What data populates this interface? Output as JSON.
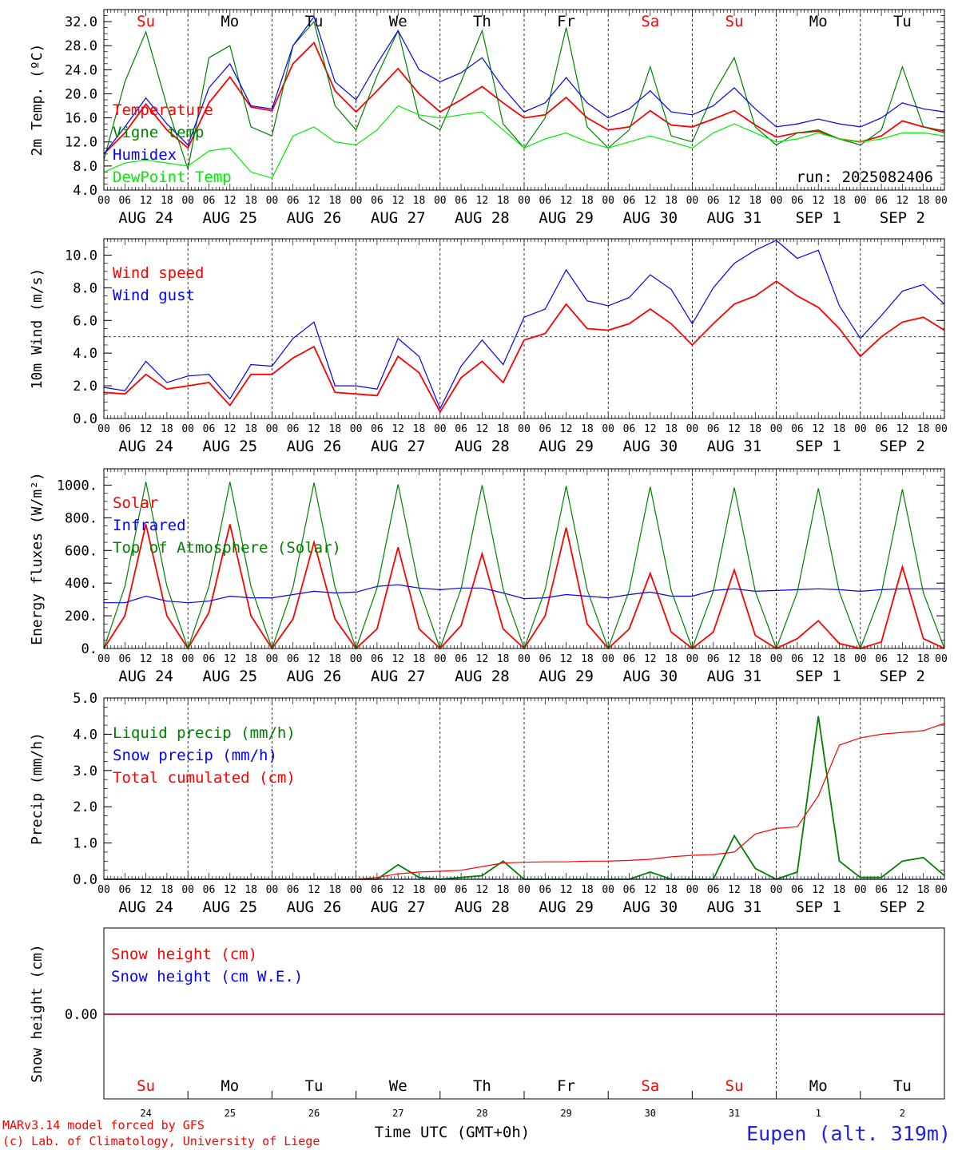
{
  "chart_data": [
    {
      "type": "line",
      "ylabel": "2m Temp. (ºC)",
      "ylim": [
        4,
        34
      ],
      "yticks": [
        "4.0",
        "8.0",
        "12.0",
        "16.0",
        "20.0",
        "24.0",
        "28.0",
        "32.0"
      ],
      "run_label": "run: 2025082406",
      "day_names": [
        "Su",
        "Mo",
        "Tu",
        "We",
        "Th",
        "Fr",
        "Sa",
        "Su",
        "Mo",
        "Tu"
      ],
      "x_hours": [
        0,
        6,
        12,
        18,
        24,
        30,
        36,
        42,
        48,
        54,
        60,
        66,
        72,
        78,
        84,
        90,
        96,
        102,
        108,
        114,
        120,
        126,
        132,
        138,
        144,
        150,
        156,
        162,
        168,
        174,
        180,
        186,
        192,
        198,
        204,
        210,
        216,
        222,
        228,
        234,
        240
      ],
      "series": [
        {
          "name": "Temperature",
          "color": "#ff0000",
          "values": [
            10.0,
            13.5,
            18.3,
            14.0,
            11.0,
            18.5,
            22.8,
            17.8,
            17.2,
            25.0,
            28.5,
            20.5,
            17.0,
            20.5,
            24.2,
            20.0,
            17.0,
            19.0,
            21.2,
            18.5,
            16.0,
            16.5,
            19.4,
            16.0,
            14.0,
            14.5,
            17.2,
            14.8,
            14.5,
            15.8,
            17.2,
            14.8,
            12.8,
            13.5,
            13.8,
            12.5,
            12.0,
            13.0,
            15.5,
            14.5,
            13.8
          ]
        },
        {
          "name": "Vigne temp",
          "color": "#008000",
          "values": [
            9.0,
            22.0,
            30.3,
            18.0,
            7.5,
            26.0,
            28.0,
            14.5,
            13.0,
            28.0,
            32.0,
            18.0,
            14.0,
            23.0,
            30.5,
            16.0,
            14.0,
            22.0,
            30.5,
            15.0,
            11.0,
            16.0,
            31.0,
            14.5,
            11.0,
            14.0,
            24.5,
            13.0,
            12.0,
            20.0,
            26.0,
            14.5,
            11.5,
            13.5,
            14.0,
            12.5,
            11.5,
            14.0,
            24.5,
            14.5,
            13.5
          ]
        },
        {
          "name": "Humidex",
          "color": "#0000ff",
          "values": [
            10.0,
            14.5,
            19.3,
            15.0,
            11.5,
            21.0,
            25.0,
            18.0,
            17.5,
            28.0,
            32.8,
            22.0,
            19.0,
            25.0,
            30.5,
            24.0,
            22.0,
            23.5,
            26.0,
            21.0,
            17.0,
            18.5,
            22.7,
            18.5,
            16.0,
            17.5,
            20.5,
            17.0,
            16.5,
            18.0,
            21.0,
            17.5,
            14.5,
            15.0,
            15.8,
            15.0,
            14.5,
            16.0,
            18.5,
            17.5,
            17.0
          ]
        },
        {
          "name": "DewPoint Temp",
          "color": "#00ee00",
          "values": [
            7.0,
            8.5,
            9.0,
            8.5,
            8.0,
            10.5,
            11.0,
            7.0,
            6.0,
            13.0,
            14.5,
            12.0,
            11.5,
            14.0,
            18.0,
            16.5,
            16.0,
            16.5,
            17.0,
            14.0,
            11.0,
            12.5,
            13.5,
            12.0,
            11.0,
            12.0,
            13.0,
            12.0,
            11.0,
            13.5,
            15.0,
            13.5,
            12.0,
            12.5,
            13.5,
            12.5,
            12.0,
            12.5,
            13.5,
            13.5,
            13.0
          ]
        }
      ]
    },
    {
      "type": "line",
      "ylabel": "10m Wind (m/s)",
      "ylim": [
        0,
        11
      ],
      "yticks": [
        "0.0",
        "2.0",
        "4.0",
        "6.0",
        "8.0",
        "10.0"
      ],
      "reference_line": 5.0,
      "x_hours": [
        0,
        6,
        12,
        18,
        24,
        30,
        36,
        42,
        48,
        54,
        60,
        66,
        72,
        78,
        84,
        90,
        96,
        102,
        108,
        114,
        120,
        126,
        132,
        138,
        144,
        150,
        156,
        162,
        168,
        174,
        180,
        186,
        192,
        198,
        204,
        210,
        216,
        222,
        228,
        234,
        240
      ],
      "series": [
        {
          "name": "Wind speed",
          "color": "#ff0000",
          "values": [
            1.6,
            1.5,
            2.7,
            1.8,
            2.0,
            2.2,
            0.8,
            2.7,
            2.7,
            3.7,
            4.4,
            1.6,
            1.5,
            1.4,
            3.8,
            2.8,
            0.4,
            2.5,
            3.5,
            2.2,
            4.8,
            5.2,
            7.0,
            5.5,
            5.4,
            5.8,
            6.7,
            5.8,
            4.5,
            5.8,
            7.0,
            7.5,
            8.4,
            7.5,
            6.8,
            5.5,
            3.8,
            5.0,
            5.9,
            6.2,
            5.4
          ]
        },
        {
          "name": "Wind gust",
          "color": "#0000ff",
          "values": [
            1.9,
            1.7,
            3.5,
            2.2,
            2.6,
            2.7,
            1.2,
            3.3,
            3.2,
            4.9,
            5.9,
            2.0,
            2.0,
            1.8,
            4.9,
            3.8,
            0.6,
            3.2,
            4.8,
            3.3,
            6.2,
            6.7,
            9.1,
            7.2,
            6.9,
            7.4,
            8.8,
            7.9,
            5.8,
            8.0,
            9.5,
            10.3,
            10.9,
            9.8,
            10.3,
            6.9,
            4.9,
            6.3,
            7.8,
            8.2,
            7.0
          ]
        }
      ]
    },
    {
      "type": "line",
      "ylabel": "Energy fluxes (W/m²)",
      "ylim": [
        0,
        1100
      ],
      "yticks": [
        "0.",
        "200.",
        "400.",
        "600.",
        "800.",
        "1000."
      ],
      "x_hours": [
        0,
        6,
        12,
        18,
        24,
        30,
        36,
        42,
        48,
        54,
        60,
        66,
        72,
        78,
        84,
        90,
        96,
        102,
        108,
        114,
        120,
        126,
        132,
        138,
        144,
        150,
        156,
        162,
        168,
        174,
        180,
        186,
        192,
        198,
        204,
        210,
        216,
        222,
        228,
        234,
        240
      ],
      "series": [
        {
          "name": "Solar",
          "color": "#ff0000",
          "values": [
            0,
            200,
            760,
            200,
            0,
            220,
            760,
            200,
            0,
            180,
            650,
            180,
            0,
            120,
            620,
            120,
            0,
            140,
            580,
            120,
            0,
            200,
            740,
            150,
            0,
            120,
            460,
            100,
            0,
            100,
            480,
            80,
            0,
            60,
            170,
            30,
            0,
            40,
            500,
            60,
            0
          ]
        },
        {
          "name": "Infrared",
          "color": "#0000ff",
          "values": [
            280,
            280,
            320,
            290,
            280,
            290,
            320,
            310,
            310,
            330,
            350,
            340,
            345,
            380,
            390,
            370,
            360,
            370,
            370,
            340,
            305,
            310,
            330,
            320,
            310,
            330,
            345,
            320,
            320,
            355,
            365,
            350,
            355,
            360,
            365,
            360,
            350,
            360,
            365,
            365,
            365
          ]
        },
        {
          "name": "Top of Atmosphere (Solar)",
          "color": "#008000",
          "values": [
            0,
            380,
            1020,
            380,
            0,
            380,
            1020,
            380,
            0,
            375,
            1015,
            375,
            0,
            370,
            1005,
            370,
            0,
            365,
            1000,
            365,
            0,
            360,
            995,
            360,
            0,
            355,
            990,
            355,
            0,
            350,
            985,
            350,
            0,
            345,
            980,
            345,
            0,
            340,
            975,
            340,
            0
          ]
        }
      ]
    },
    {
      "type": "line",
      "ylabel": "Precip (mm/h)",
      "ylim": [
        0,
        5
      ],
      "yticks": [
        "0.0",
        "1.0",
        "2.0",
        "3.0",
        "4.0",
        "5.0"
      ],
      "x_hours": [
        0,
        6,
        12,
        18,
        24,
        30,
        36,
        42,
        48,
        54,
        60,
        66,
        72,
        78,
        84,
        90,
        96,
        102,
        108,
        114,
        120,
        126,
        132,
        138,
        144,
        150,
        156,
        162,
        168,
        174,
        180,
        186,
        192,
        198,
        204,
        210,
        216,
        222,
        228,
        234,
        240
      ],
      "series": [
        {
          "name": "Liquid precip (mm/h)",
          "color": "#008000",
          "values": [
            0,
            0,
            0,
            0,
            0,
            0,
            0,
            0,
            0,
            0,
            0,
            0,
            0,
            0,
            0.4,
            0.05,
            0,
            0.05,
            0.1,
            0.5,
            0,
            0,
            0,
            0,
            0,
            0,
            0.2,
            0,
            0,
            0,
            1.2,
            0.3,
            0,
            0.2,
            4.5,
            0.5,
            0.05,
            0.05,
            0.5,
            0.6,
            0.1
          ]
        },
        {
          "name": "Snow precip (mm/h)",
          "color": "#0000ff",
          "values": [
            0,
            0,
            0,
            0,
            0,
            0,
            0,
            0,
            0,
            0,
            0,
            0,
            0,
            0,
            0,
            0,
            0,
            0,
            0,
            0,
            0,
            0,
            0,
            0,
            0,
            0,
            0,
            0,
            0,
            0,
            0,
            0,
            0,
            0,
            0,
            0,
            0,
            0,
            0,
            0,
            0
          ]
        },
        {
          "name": "Total cumulated (cm)",
          "color": "#ff0000",
          "values": [
            0,
            0,
            0,
            0,
            0,
            0,
            0,
            0,
            0,
            0,
            0,
            0,
            0,
            0.05,
            0.15,
            0.2,
            0.22,
            0.25,
            0.35,
            0.45,
            0.47,
            0.48,
            0.48,
            0.5,
            0.5,
            0.52,
            0.55,
            0.62,
            0.66,
            0.68,
            0.75,
            1.25,
            1.4,
            1.45,
            2.3,
            3.7,
            3.9,
            4.0,
            4.05,
            4.1,
            4.3
          ]
        }
      ]
    },
    {
      "type": "line",
      "ylabel": "Snow height (cm)",
      "ytick": "0.00",
      "day_names": [
        "Su",
        "Mo",
        "Tu",
        "We",
        "Th",
        "Fr",
        "Sa",
        "Su",
        "Mo",
        "Tu"
      ],
      "day_numbers": [
        "24",
        "25",
        "26",
        "27",
        "28",
        "29",
        "30",
        "31",
        "1",
        "2"
      ],
      "series": [
        {
          "name": "Snow height (cm)",
          "color": "#ff0000",
          "values": [
            0,
            0
          ]
        },
        {
          "name": "Snow height (cm W.E.)",
          "color": "#0000ff",
          "values": [
            0,
            0
          ]
        }
      ]
    }
  ],
  "date_labels": [
    "AUG 24",
    "AUG 25",
    "AUG 26",
    "AUG 27",
    "AUG 28",
    "AUG 29",
    "AUG 30",
    "AUG 31",
    "SEP  1",
    "SEP  2"
  ],
  "hour_ticks": [
    "00",
    "06",
    "12",
    "18"
  ],
  "hour_end": "00",
  "xlabel": "Time UTC (GMT+0h)",
  "credit_line1": "MARv3.14 model forced by GFS",
  "credit_line2": "(c) Lab. of Climatology, University of Liege",
  "station": "Eupen (alt. 319m)"
}
